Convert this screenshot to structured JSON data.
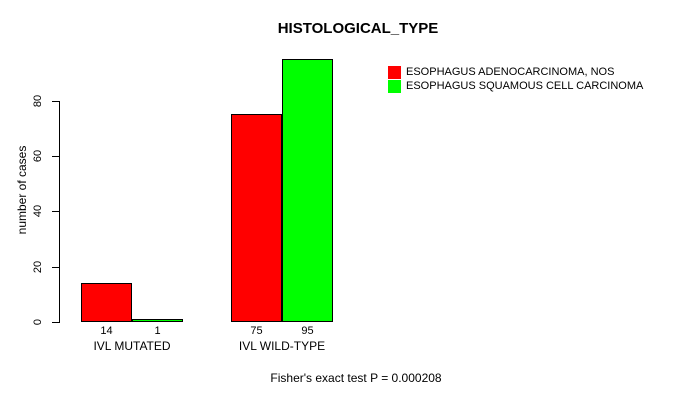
{
  "chart_data": {
    "type": "bar",
    "title": "HISTOLOGICAL_TYPE",
    "ylabel": "number of cases",
    "xlabel": "",
    "categories": [
      "IVL MUTATED",
      "IVL WILD-TYPE"
    ],
    "series": [
      {
        "name": "ESOPHAGUS ADENOCARCINOMA, NOS",
        "color": "#ff0000",
        "values": [
          14,
          75
        ]
      },
      {
        "name": "ESOPHAGUS SQUAMOUS CELL CARCINOMA",
        "color": "#00ff00",
        "values": [
          1,
          95
        ]
      }
    ],
    "yticks": [
      0,
      20,
      40,
      60,
      80
    ],
    "ylim": [
      0,
      95
    ],
    "grid": false,
    "legend_position": "top-right",
    "bar_border_color": "#000000"
  },
  "footer": {
    "text": "Fisher's exact test P = 0.000208"
  }
}
